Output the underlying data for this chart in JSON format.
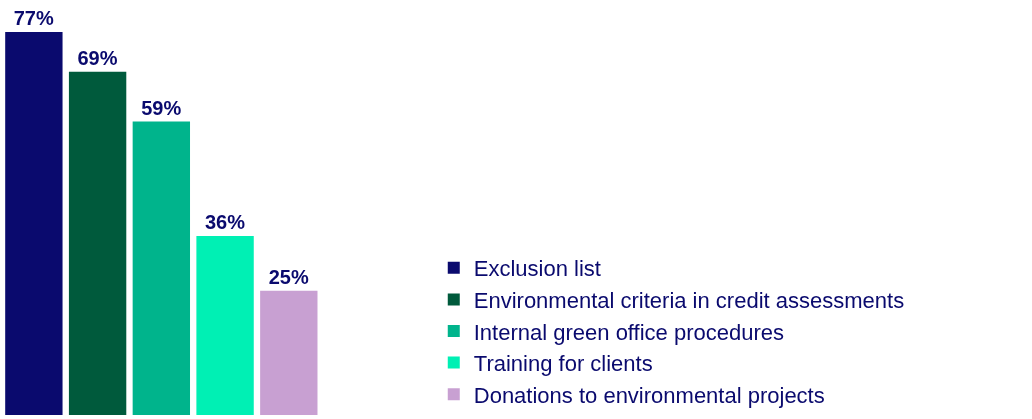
{
  "chart_data": {
    "type": "bar",
    "categories": [
      null
    ],
    "series": [
      {
        "name": "Exclusion list",
        "color": "#0a0a6e",
        "values": [
          77
        ],
        "value_labels": [
          "77%"
        ]
      },
      {
        "name": "Environmental criteria in credit assessments",
        "color": "#005a3c",
        "values": [
          69
        ],
        "value_labels": [
          "69%"
        ]
      },
      {
        "name": "Internal green office procedures",
        "color": "#00b48c",
        "values": [
          59
        ],
        "value_labels": [
          "59%"
        ]
      },
      {
        "name": "Training for clients",
        "color": "#00f0b4",
        "values": [
          36
        ],
        "value_labels": [
          "36%"
        ]
      },
      {
        "name": "Donations to environmental projects",
        "color": "#c8a0d2",
        "values": [
          25
        ],
        "value_labels": [
          "25%"
        ]
      }
    ],
    "legend": "right"
  }
}
